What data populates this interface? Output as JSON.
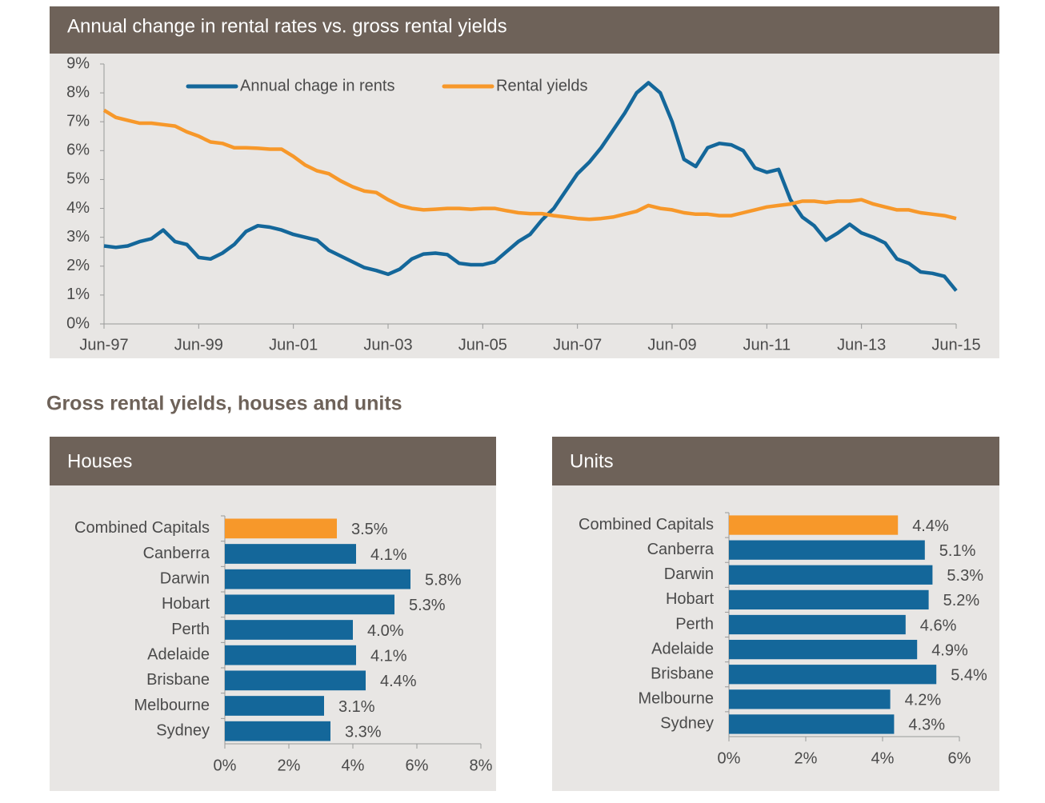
{
  "heading": "Gross rental yields, houses and units",
  "chart_data": [
    {
      "type": "line",
      "title": "Annual change in rental rates vs. gross rental yields",
      "x": [
        1997.5,
        1997.75,
        1998,
        1998.25,
        1998.5,
        1998.75,
        1999,
        1999.25,
        1999.5,
        1999.75,
        2000,
        2000.25,
        2000.5,
        2000.75,
        2001,
        2001.25,
        2001.5,
        2001.75,
        2002,
        2002.25,
        2002.5,
        2002.75,
        2003,
        2003.25,
        2003.5,
        2003.75,
        2004,
        2004.25,
        2004.5,
        2004.75,
        2005,
        2005.25,
        2005.5,
        2005.75,
        2006,
        2006.25,
        2006.5,
        2006.75,
        2007,
        2007.25,
        2007.5,
        2007.75,
        2008,
        2008.25,
        2008.5,
        2008.75,
        2009,
        2009.25,
        2009.5,
        2009.75,
        2010,
        2010.25,
        2010.5,
        2010.75,
        2011,
        2011.25,
        2011.5,
        2011.75,
        2012,
        2012.25,
        2012.5,
        2012.75,
        2013,
        2013.25,
        2013.5,
        2013.75,
        2014,
        2014.25,
        2014.5,
        2014.75,
        2015,
        2015.25,
        2015.5
      ],
      "series": [
        {
          "name": "Annual chage in rents",
          "color": "#14679a",
          "values": [
            2.7,
            2.65,
            2.7,
            2.85,
            2.95,
            3.25,
            2.85,
            2.75,
            2.3,
            2.25,
            2.45,
            2.75,
            3.2,
            3.4,
            3.35,
            3.25,
            3.1,
            3.0,
            2.9,
            2.55,
            2.35,
            2.15,
            1.95,
            1.85,
            1.72,
            1.9,
            2.25,
            2.42,
            2.45,
            2.4,
            2.1,
            2.05,
            2.05,
            2.15,
            2.5,
            2.85,
            3.1,
            3.6,
            4.0,
            4.6,
            5.2,
            5.6,
            6.1,
            6.7,
            7.3,
            8.0,
            8.35,
            8.0,
            7.0,
            5.7,
            5.45,
            6.1,
            6.25,
            6.2,
            6.0,
            5.4,
            5.25,
            5.35,
            4.3,
            3.7,
            3.4,
            2.9,
            3.15,
            3.45,
            3.15,
            3.0,
            2.8,
            2.25,
            2.1,
            1.8,
            1.75,
            1.65,
            1.15
          ]
        },
        {
          "name": "Rental yields",
          "color": "#f7982a",
          "values": [
            7.4,
            7.15,
            7.05,
            6.95,
            6.95,
            6.9,
            6.85,
            6.65,
            6.5,
            6.3,
            6.25,
            6.1,
            6.1,
            6.08,
            6.05,
            6.05,
            5.8,
            5.5,
            5.3,
            5.2,
            4.95,
            4.75,
            4.6,
            4.55,
            4.3,
            4.1,
            4.0,
            3.95,
            3.97,
            4.0,
            4.0,
            3.97,
            4.0,
            4.0,
            3.92,
            3.85,
            3.82,
            3.82,
            3.75,
            3.7,
            3.65,
            3.62,
            3.65,
            3.7,
            3.8,
            3.9,
            4.1,
            4.0,
            3.95,
            3.85,
            3.8,
            3.8,
            3.75,
            3.75,
            3.85,
            3.95,
            4.05,
            4.1,
            4.15,
            4.25,
            4.25,
            4.2,
            4.25,
            4.25,
            4.3,
            4.15,
            4.05,
            3.95,
            3.95,
            3.85,
            3.8,
            3.75,
            3.65
          ]
        }
      ],
      "xlim": [
        1997.5,
        2015.5
      ],
      "xticks": [
        {
          "value": 1997.5,
          "label": "Jun-97"
        },
        {
          "value": 1999.5,
          "label": "Jun-99"
        },
        {
          "value": 2001.5,
          "label": "Jun-01"
        },
        {
          "value": 2003.5,
          "label": "Jun-03"
        },
        {
          "value": 2005.5,
          "label": "Jun-05"
        },
        {
          "value": 2007.5,
          "label": "Jun-07"
        },
        {
          "value": 2009.5,
          "label": "Jun-09"
        },
        {
          "value": 2011.5,
          "label": "Jun-11"
        },
        {
          "value": 2013.5,
          "label": "Jun-13"
        },
        {
          "value": 2015.5,
          "label": "Jun-15"
        }
      ],
      "ylim": [
        0,
        9
      ],
      "yticks": [
        {
          "value": 0,
          "label": "0%"
        },
        {
          "value": 1,
          "label": "1%"
        },
        {
          "value": 2,
          "label": "2%"
        },
        {
          "value": 3,
          "label": "3%"
        },
        {
          "value": 4,
          "label": "4%"
        },
        {
          "value": 5,
          "label": "5%"
        },
        {
          "value": 6,
          "label": "6%"
        },
        {
          "value": 7,
          "label": "7%"
        },
        {
          "value": 8,
          "label": "8%"
        },
        {
          "value": 9,
          "label": "9%"
        }
      ],
      "legend": "top"
    },
    {
      "type": "barh",
      "title": "Houses",
      "categories": [
        "Combined Capitals",
        "Canberra",
        "Darwin",
        "Hobart",
        "Perth",
        "Adelaide",
        "Brisbane",
        "Melbourne",
        "Sydney"
      ],
      "values": [
        3.5,
        4.1,
        5.8,
        5.3,
        4.0,
        4.1,
        4.4,
        3.1,
        3.3
      ],
      "value_labels": [
        "3.5%",
        "4.1%",
        "5.8%",
        "5.3%",
        "4.0%",
        "4.1%",
        "4.4%",
        "3.1%",
        "3.3%"
      ],
      "colors": [
        "#f7982a",
        "#14679a",
        "#14679a",
        "#14679a",
        "#14679a",
        "#14679a",
        "#14679a",
        "#14679a",
        "#14679a"
      ],
      "xlim": [
        0,
        8
      ],
      "xticks": [
        {
          "value": 0,
          "label": "0%"
        },
        {
          "value": 2,
          "label": "2%"
        },
        {
          "value": 4,
          "label": "4%"
        },
        {
          "value": 6,
          "label": "6%"
        },
        {
          "value": 8,
          "label": "8%"
        }
      ]
    },
    {
      "type": "barh",
      "title": "Units",
      "categories": [
        "Combined Capitals",
        "Canberra",
        "Darwin",
        "Hobart",
        "Perth",
        "Adelaide",
        "Brisbane",
        "Melbourne",
        "Sydney"
      ],
      "values": [
        4.4,
        5.1,
        5.3,
        5.2,
        4.6,
        4.9,
        5.4,
        4.2,
        4.3
      ],
      "value_labels": [
        "4.4%",
        "5.1%",
        "5.3%",
        "5.2%",
        "4.6%",
        "4.9%",
        "5.4%",
        "4.2%",
        "4.3%"
      ],
      "colors": [
        "#f7982a",
        "#14679a",
        "#14679a",
        "#14679a",
        "#14679a",
        "#14679a",
        "#14679a",
        "#14679a",
        "#14679a"
      ],
      "xlim": [
        0,
        6
      ],
      "xticks": [
        {
          "value": 0,
          "label": "0%"
        },
        {
          "value": 2,
          "label": "2%"
        },
        {
          "value": 4,
          "label": "4%"
        },
        {
          "value": 6,
          "label": "6%"
        }
      ]
    }
  ]
}
